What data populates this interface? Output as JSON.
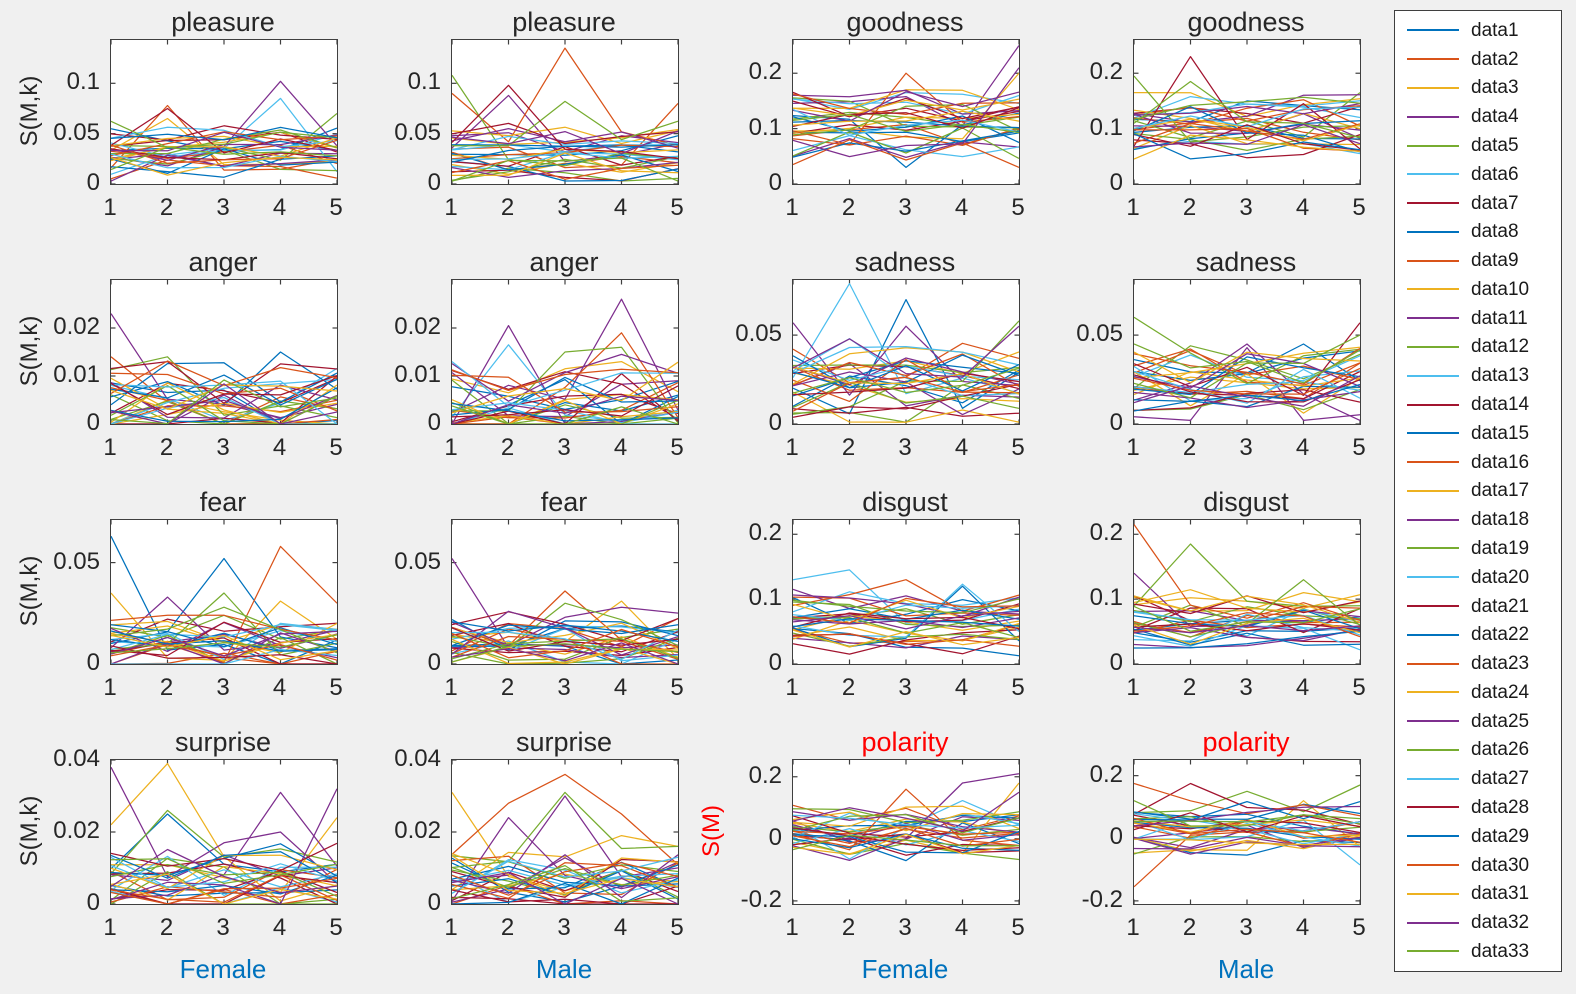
{
  "figure": {
    "background": "#F0F0F0",
    "axes_background": "#FFFFFF",
    "axes_border_color": "#3F3F3F",
    "tick_text_color": "#262626",
    "female_male_label_color": "#0072BD",
    "polarity_label_color": "#FF0000"
  },
  "color_order": [
    "#0072BD",
    "#D95319",
    "#EDB120",
    "#7E2F8E",
    "#77AC30",
    "#4DBEEE",
    "#A2142F"
  ],
  "legend": {
    "position": "right",
    "entries": [
      "data1",
      "data2",
      "data3",
      "data4",
      "data5",
      "data6",
      "data7",
      "data8",
      "data9",
      "data10",
      "data11",
      "data12",
      "data13",
      "data14",
      "data15",
      "data16",
      "data17",
      "data18",
      "data19",
      "data20",
      "data21",
      "data22",
      "data23",
      "data24",
      "data25",
      "data26",
      "data27",
      "data28",
      "data29",
      "data30",
      "data31",
      "data32",
      "data33"
    ]
  },
  "chart_data": {
    "type": "line",
    "grid": false,
    "x": [
      1,
      2,
      3,
      4,
      5
    ],
    "series_per_subplot": 33,
    "layout": "4x4",
    "subplots": [
      {
        "id": "pleasure-female",
        "title": "pleasure",
        "title_color": "#262626",
        "ylabel": "S(M,k)",
        "ylabel_color": "#262626",
        "xlabel": null,
        "ylim": [
          0,
          0.143
        ],
        "yticks": [
          [
            0,
            "0"
          ],
          [
            0.05,
            "0.05"
          ],
          [
            0.1,
            "0.1"
          ]
        ],
        "band": [
          0.012,
          0.052
        ],
        "jitter": 0.014,
        "clamp": [
          0.003,
          0.08
        ],
        "seed": 11,
        "spikes": [
          [
            10,
            4,
            0.102
          ],
          [
            5,
            4,
            0.085
          ],
          [
            1,
            2,
            0.078
          ],
          [
            20,
            2,
            0.075
          ],
          [
            4,
            5,
            0.07
          ],
          [
            2,
            2,
            0.065
          ]
        ]
      },
      {
        "id": "pleasure-male",
        "title": "pleasure",
        "title_color": "#262626",
        "ylabel": null,
        "xlabel": null,
        "ylim": [
          0,
          0.143
        ],
        "yticks": [
          [
            0,
            "0"
          ],
          [
            0.05,
            "0.05"
          ],
          [
            0.1,
            "0.1"
          ]
        ],
        "band": [
          0.012,
          0.052
        ],
        "jitter": 0.014,
        "clamp": [
          0.003,
          0.08
        ],
        "seed": 22,
        "spikes": [
          [
            15,
            1,
            0.09
          ],
          [
            15,
            3,
            0.135
          ],
          [
            1,
            5,
            0.08
          ],
          [
            18,
            1,
            0.108
          ],
          [
            10,
            2,
            0.088
          ],
          [
            27,
            2,
            0.098
          ],
          [
            25,
            3,
            0.082
          ]
        ]
      },
      {
        "id": "goodness-female",
        "title": "goodness",
        "title_color": "#262626",
        "ylabel": null,
        "xlabel": null,
        "ylim": [
          0,
          0.26
        ],
        "yticks": [
          [
            0,
            "0"
          ],
          [
            0.1,
            "0.1"
          ],
          [
            0.2,
            "0.2"
          ]
        ],
        "band": [
          0.055,
          0.155
        ],
        "jitter": 0.028,
        "clamp": [
          0.03,
          0.185
        ],
        "seed": 33,
        "spikes": [
          [
            15,
            3,
            0.2
          ],
          [
            10,
            5,
            0.25
          ],
          [
            2,
            5,
            0.2
          ],
          [
            0,
            3,
            0.03
          ],
          [
            31,
            5,
            0.21
          ]
        ]
      },
      {
        "id": "goodness-male",
        "title": "goodness",
        "title_color": "#262626",
        "ylabel": null,
        "xlabel": null,
        "ylim": [
          0,
          0.26
        ],
        "yticks": [
          [
            0,
            "0"
          ],
          [
            0.1,
            "0.1"
          ],
          [
            0.2,
            "0.2"
          ]
        ],
        "band": [
          0.055,
          0.15
        ],
        "jitter": 0.026,
        "clamp": [
          0.045,
          0.175
        ],
        "seed": 44,
        "spikes": [
          [
            20,
            2,
            0.23
          ],
          [
            18,
            1,
            0.195
          ],
          [
            25,
            2,
            0.185
          ],
          [
            20,
            4,
            0.145
          ],
          [
            4,
            5,
            0.165
          ]
        ]
      },
      {
        "id": "anger-female",
        "title": "anger",
        "title_color": "#262626",
        "ylabel": "S(M,k)",
        "ylabel_color": "#262626",
        "xlabel": null,
        "ylim": [
          0,
          0.03
        ],
        "yticks": [
          [
            0,
            "0"
          ],
          [
            0.01,
            "0.01"
          ],
          [
            0.02,
            "0.02"
          ]
        ],
        "band": [
          0.0005,
          0.0085
        ],
        "jitter": 0.006,
        "clamp": [
          0,
          0.0145
        ],
        "seed": 55,
        "spikes": [
          [
            10,
            1,
            0.023
          ],
          [
            1,
            1,
            0.014
          ],
          [
            18,
            2,
            0.014
          ],
          [
            7,
            4,
            0.015
          ],
          [
            20,
            2,
            0.013
          ],
          [
            6,
            5,
            0.0095
          ],
          [
            13,
            5,
            0.01
          ]
        ]
      },
      {
        "id": "anger-male",
        "title": "anger",
        "title_color": "#262626",
        "ylabel": null,
        "xlabel": null,
        "ylim": [
          0,
          0.03
        ],
        "yticks": [
          [
            0,
            "0"
          ],
          [
            0.01,
            "0.01"
          ],
          [
            0.02,
            "0.02"
          ]
        ],
        "band": [
          0.0005,
          0.0085
        ],
        "jitter": 0.006,
        "clamp": [
          0,
          0.013
        ],
        "seed": 66,
        "spikes": [
          [
            10,
            4,
            0.026
          ],
          [
            17,
            2,
            0.0205
          ],
          [
            15,
            4,
            0.019
          ],
          [
            5,
            2,
            0.0165
          ],
          [
            18,
            3,
            0.015
          ],
          [
            18,
            4,
            0.016
          ],
          [
            24,
            4,
            0.0145
          ],
          [
            2,
            3,
            0.0115
          ]
        ]
      },
      {
        "id": "sadness-female",
        "title": "sadness",
        "title_color": "#262626",
        "ylabel": null,
        "xlabel": null,
        "ylim": [
          0,
          0.081
        ],
        "yticks": [
          [
            0,
            "0"
          ],
          [
            0.05,
            "0.05"
          ]
        ],
        "band": [
          0.01,
          0.038
        ],
        "jitter": 0.013,
        "clamp": [
          0.001,
          0.048
        ],
        "seed": 77,
        "spikes": [
          [
            5,
            2,
            0.079
          ],
          [
            7,
            3,
            0.07
          ],
          [
            10,
            1,
            0.057
          ],
          [
            12,
            2,
            0.048
          ],
          [
            18,
            5,
            0.058
          ],
          [
            31,
            5,
            0.055
          ],
          [
            10,
            3,
            0.055
          ]
        ]
      },
      {
        "id": "sadness-male",
        "title": "sadness",
        "title_color": "#262626",
        "ylabel": null,
        "xlabel": null,
        "ylim": [
          0,
          0.081
        ],
        "yticks": [
          [
            0,
            "0"
          ],
          [
            0.05,
            "0.05"
          ]
        ],
        "band": [
          0.01,
          0.036
        ],
        "jitter": 0.012,
        "clamp": [
          0.002,
          0.045
        ],
        "seed": 88,
        "spikes": [
          [
            18,
            1,
            0.06
          ],
          [
            20,
            5,
            0.057
          ],
          [
            10,
            3,
            0.045
          ],
          [
            0,
            4,
            0.045
          ],
          [
            25,
            5,
            0.05
          ],
          [
            3,
            3,
            0.043
          ]
        ]
      },
      {
        "id": "fear-female",
        "title": "fear",
        "title_color": "#262626",
        "ylabel": "S(M,k)",
        "ylabel_color": "#262626",
        "xlabel": null,
        "ylim": [
          0,
          0.071
        ],
        "yticks": [
          [
            0,
            "0"
          ],
          [
            0.05,
            "0.05"
          ]
        ],
        "band": [
          0.002,
          0.018
        ],
        "jitter": 0.009,
        "clamp": [
          0,
          0.024
        ],
        "seed": 99,
        "spikes": [
          [
            0,
            1,
            0.063
          ],
          [
            7,
            3,
            0.052
          ],
          [
            15,
            4,
            0.058
          ],
          [
            2,
            1,
            0.035
          ],
          [
            18,
            3,
            0.035
          ],
          [
            10,
            2,
            0.033
          ],
          [
            25,
            3,
            0.028
          ],
          [
            15,
            5,
            0.03
          ],
          [
            2,
            4,
            0.031
          ]
        ]
      },
      {
        "id": "fear-male",
        "title": "fear",
        "title_color": "#262626",
        "ylabel": null,
        "xlabel": null,
        "ylim": [
          0,
          0.071
        ],
        "yticks": [
          [
            0,
            "0"
          ],
          [
            0.05,
            "0.05"
          ]
        ],
        "band": [
          0.002,
          0.019
        ],
        "jitter": 0.009,
        "clamp": [
          0,
          0.026
        ],
        "seed": 110,
        "spikes": [
          [
            10,
            1,
            0.052
          ],
          [
            15,
            3,
            0.036
          ],
          [
            17,
            4,
            0.028
          ],
          [
            2,
            4,
            0.031
          ],
          [
            24,
            2,
            0.026
          ],
          [
            18,
            3,
            0.03
          ]
        ]
      },
      {
        "id": "disgust-female",
        "title": "disgust",
        "title_color": "#262626",
        "ylabel": null,
        "xlabel": null,
        "ylim": [
          0,
          0.222
        ],
        "yticks": [
          [
            0,
            "0"
          ],
          [
            0.1,
            "0.1"
          ],
          [
            0.2,
            "0.2"
          ]
        ],
        "band": [
          0.032,
          0.095
        ],
        "jitter": 0.022,
        "clamp": [
          0.012,
          0.115
        ],
        "seed": 121,
        "spikes": [
          [
            5,
            1,
            0.13
          ],
          [
            5,
            2,
            0.145
          ],
          [
            15,
            3,
            0.13
          ],
          [
            14,
            4,
            0.12
          ],
          [
            10,
            1,
            0.115
          ],
          [
            19,
            4,
            0.123
          ],
          [
            10,
            3,
            0.105
          ]
        ]
      },
      {
        "id": "disgust-male",
        "title": "disgust",
        "title_color": "#262626",
        "ylabel": null,
        "xlabel": null,
        "ylim": [
          0,
          0.222
        ],
        "yticks": [
          [
            0,
            "0"
          ],
          [
            0.1,
            "0.1"
          ],
          [
            0.2,
            "0.2"
          ]
        ],
        "band": [
          0.032,
          0.095
        ],
        "jitter": 0.022,
        "clamp": [
          0.012,
          0.115
        ],
        "seed": 132,
        "spikes": [
          [
            15,
            1,
            0.215
          ],
          [
            18,
            2,
            0.185
          ],
          [
            10,
            1,
            0.14
          ],
          [
            25,
            4,
            0.13
          ],
          [
            6,
            1,
            0.105
          ],
          [
            20,
            3,
            0.105
          ]
        ]
      },
      {
        "id": "surprise-female",
        "title": "surprise",
        "title_color": "#262626",
        "ylabel": "S(M,k)",
        "ylabel_color": "#262626",
        "xlabel": "Female",
        "ylim": [
          0,
          0.04
        ],
        "yticks": [
          [
            0,
            "0"
          ],
          [
            0.02,
            "0.02"
          ],
          [
            0.04,
            "0.04"
          ]
        ],
        "band": [
          0.001,
          0.0115
        ],
        "jitter": 0.007,
        "clamp": [
          0,
          0.017
        ],
        "seed": 143,
        "spikes": [
          [
            2,
            2,
            0.039
          ],
          [
            10,
            1,
            0.038
          ],
          [
            17,
            4,
            0.031
          ],
          [
            24,
            5,
            0.032
          ],
          [
            18,
            2,
            0.026
          ],
          [
            0,
            2,
            0.025
          ],
          [
            9,
            5,
            0.024
          ],
          [
            2,
            1,
            0.022
          ],
          [
            10,
            4,
            0.02
          ]
        ]
      },
      {
        "id": "surprise-male",
        "title": "surprise",
        "title_color": "#262626",
        "ylabel": null,
        "xlabel": "Male",
        "ylim": [
          0,
          0.04
        ],
        "yticks": [
          [
            0,
            "0"
          ],
          [
            0.02,
            "0.02"
          ],
          [
            0.04,
            "0.04"
          ]
        ],
        "band": [
          0.001,
          0.012
        ],
        "jitter": 0.007,
        "clamp": [
          0,
          0.016
        ],
        "seed": 154,
        "spikes": [
          [
            15,
            2,
            0.028
          ],
          [
            15,
            3,
            0.036
          ],
          [
            2,
            1,
            0.031
          ],
          [
            18,
            3,
            0.031
          ],
          [
            10,
            3,
            0.03
          ],
          [
            17,
            2,
            0.024
          ],
          [
            9,
            4,
            0.019
          ],
          [
            15,
            4,
            0.025
          ]
        ]
      },
      {
        "id": "polarity-female",
        "title": "polarity",
        "title_color": "#FF0000",
        "ylabel": "S(M)",
        "ylabel_color": "#FF0000",
        "xlabel": "Female",
        "ylim": [
          -0.21,
          0.254
        ],
        "yticks": [
          [
            -0.2,
            "-0.2"
          ],
          [
            0,
            "0"
          ],
          [
            0.2,
            "0.2"
          ]
        ],
        "band": [
          -0.035,
          0.1
        ],
        "jitter": 0.045,
        "clamp": [
          -0.075,
          0.155
        ],
        "seed": 165,
        "spikes": [
          [
            10,
            5,
            0.21
          ],
          [
            10,
            4,
            0.18
          ],
          [
            15,
            3,
            0.16
          ],
          [
            2,
            5,
            0.18
          ],
          [
            5,
            2,
            -0.065
          ],
          [
            7,
            3,
            -0.07
          ],
          [
            31,
            5,
            0.15
          ]
        ]
      },
      {
        "id": "polarity-male",
        "title": "polarity",
        "title_color": "#FF0000",
        "ylabel": null,
        "xlabel": "Male",
        "ylim": [
          -0.21,
          0.25
        ],
        "yticks": [
          [
            -0.2,
            "-0.2"
          ],
          [
            0,
            "0"
          ],
          [
            0.2,
            "0.2"
          ]
        ],
        "band": [
          -0.03,
          0.09
        ],
        "jitter": 0.04,
        "clamp": [
          -0.06,
          0.125
        ],
        "seed": 176,
        "spikes": [
          [
            15,
            1,
            -0.155
          ],
          [
            22,
            1,
            0.175
          ],
          [
            20,
            2,
            0.175
          ],
          [
            18,
            3,
            0.15
          ],
          [
            18,
            5,
            0.17
          ],
          [
            12,
            5,
            -0.085
          ],
          [
            25,
            1,
            0.12
          ],
          [
            2,
            4,
            0.12
          ]
        ]
      }
    ]
  }
}
